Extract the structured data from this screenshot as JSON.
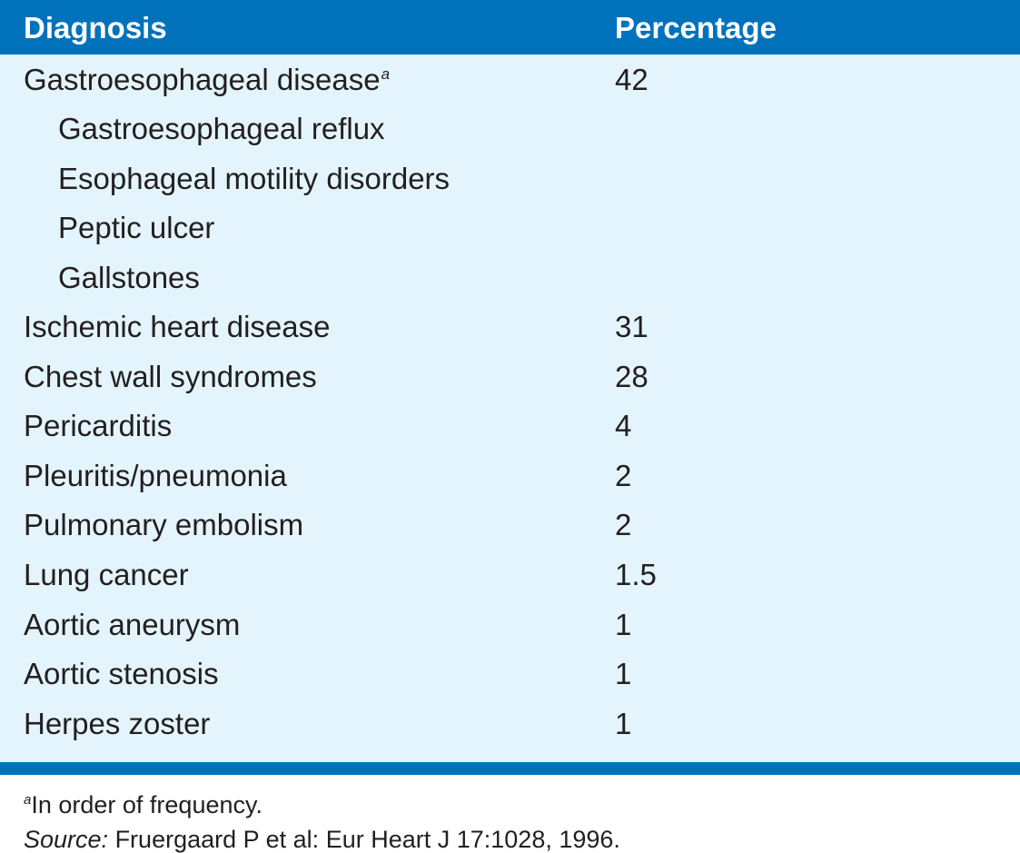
{
  "table": {
    "headers": {
      "diagnosis": "Diagnosis",
      "percentage": "Percentage"
    },
    "rows": [
      {
        "diagnosis": "Gastroesophageal disease",
        "marker": "a",
        "percentage": "42",
        "sub": false
      },
      {
        "diagnosis": "Gastroesophageal reflux",
        "marker": "",
        "percentage": "",
        "sub": true
      },
      {
        "diagnosis": "Esophageal motility disorders",
        "marker": "",
        "percentage": "",
        "sub": true
      },
      {
        "diagnosis": "Peptic ulcer",
        "marker": "",
        "percentage": "",
        "sub": true
      },
      {
        "diagnosis": "Gallstones",
        "marker": "",
        "percentage": "",
        "sub": true
      },
      {
        "diagnosis": "Ischemic heart disease",
        "marker": "",
        "percentage": "31",
        "sub": false
      },
      {
        "diagnosis": "Chest wall syndromes",
        "marker": "",
        "percentage": "28",
        "sub": false
      },
      {
        "diagnosis": "Pericarditis",
        "marker": "",
        "percentage": "4",
        "sub": false
      },
      {
        "diagnosis": "Pleuritis/pneumonia",
        "marker": "",
        "percentage": "2",
        "sub": false
      },
      {
        "diagnosis": "Pulmonary embolism",
        "marker": "",
        "percentage": "2",
        "sub": false
      },
      {
        "diagnosis": "Lung cancer",
        "marker": "",
        "percentage": "1.5",
        "sub": false
      },
      {
        "diagnosis": "Aortic aneurysm",
        "marker": "",
        "percentage": "1",
        "sub": false
      },
      {
        "diagnosis": "Aortic stenosis",
        "marker": "",
        "percentage": "1",
        "sub": false
      },
      {
        "diagnosis": "Herpes zoster",
        "marker": "",
        "percentage": "1",
        "sub": false
      }
    ]
  },
  "footnotes": {
    "marker": "a",
    "order_note": "In order of frequency.",
    "source_label": "Source:",
    "source_text": " Fruergaard P et al: Eur Heart J 17:1028, 1996."
  },
  "colors": {
    "header_bg": "#0072bc",
    "body_bg": "#e4f4fc",
    "text": "#231f20"
  }
}
